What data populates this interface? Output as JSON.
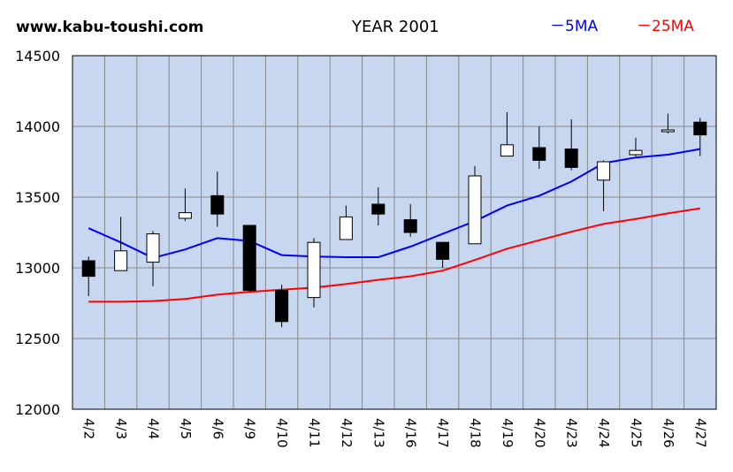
{
  "header": {
    "site": "www.kabu-toushi.com",
    "year_title": "YEAR 2001",
    "legend_5ma": "－5MA",
    "legend_25ma": "－25MA"
  },
  "chart_data": {
    "type": "candlestick",
    "title": "YEAR 2001",
    "categories": [
      "4/2",
      "4/3",
      "4/4",
      "4/5",
      "4/6",
      "4/9",
      "4/10",
      "4/11",
      "4/12",
      "4/13",
      "4/16",
      "4/17",
      "4/18",
      "4/19",
      "4/20",
      "4/23",
      "4/24",
      "4/25",
      "4/26",
      "4/27"
    ],
    "ylim": [
      12000,
      14500
    ],
    "yticks": [
      12000,
      12500,
      13000,
      13500,
      14000,
      14500
    ],
    "grid": true,
    "legend_position": "top-right",
    "colors": {
      "plot_bg": "#c6d7ef",
      "grid": "#888888",
      "up_candle": "#ffffff",
      "down_candle": "#000000",
      "ma5": "#0000ff",
      "ma25": "#ff0000"
    },
    "candles": [
      {
        "open": 13050,
        "high": 13080,
        "low": 12800,
        "close": 12940
      },
      {
        "open": 12980,
        "high": 13360,
        "low": 12980,
        "close": 13120
      },
      {
        "open": 13040,
        "high": 13260,
        "low": 12870,
        "close": 13240
      },
      {
        "open": 13350,
        "high": 13560,
        "low": 13330,
        "close": 13390
      },
      {
        "open": 13510,
        "high": 13680,
        "low": 13290,
        "close": 13380
      },
      {
        "open": 13300,
        "high": 13300,
        "low": 12830,
        "close": 12840
      },
      {
        "open": 12840,
        "high": 12880,
        "low": 12580,
        "close": 12620
      },
      {
        "open": 12790,
        "high": 13210,
        "low": 12720,
        "close": 13180
      },
      {
        "open": 13200,
        "high": 13440,
        "low": 13200,
        "close": 13360
      },
      {
        "open": 13450,
        "high": 13570,
        "low": 13300,
        "close": 13380
      },
      {
        "open": 13340,
        "high": 13450,
        "low": 13220,
        "close": 13250
      },
      {
        "open": 13180,
        "high": 13180,
        "low": 13000,
        "close": 13060
      },
      {
        "open": 13170,
        "high": 13720,
        "low": 13170,
        "close": 13650
      },
      {
        "open": 13790,
        "high": 14100,
        "low": 13790,
        "close": 13870
      },
      {
        "open": 13850,
        "high": 14000,
        "low": 13700,
        "close": 13760
      },
      {
        "open": 13840,
        "high": 14050,
        "low": 13690,
        "close": 13710
      },
      {
        "open": 13620,
        "high": 13760,
        "low": 13400,
        "close": 13750
      },
      {
        "open": 13800,
        "high": 13920,
        "low": 13790,
        "close": 13830
      },
      {
        "open": 13970,
        "high": 14090,
        "low": 13950,
        "close": 13975
      },
      {
        "open": 14030,
        "high": 14060,
        "low": 13790,
        "close": 13940
      }
    ],
    "series": [
      {
        "name": "5MA",
        "values": [
          13280,
          13180,
          13070,
          13130,
          13210,
          13190,
          13090,
          13080,
          13075,
          13075,
          13150,
          13240,
          13330,
          13440,
          13510,
          13610,
          13740,
          13780,
          13800,
          13840
        ]
      },
      {
        "name": "25MA",
        "values": [
          12760,
          12760,
          12765,
          12780,
          12810,
          12830,
          12845,
          12860,
          12885,
          12915,
          12940,
          12980,
          13055,
          13135,
          13195,
          13255,
          13310,
          13345,
          13385,
          13420
        ]
      }
    ]
  }
}
